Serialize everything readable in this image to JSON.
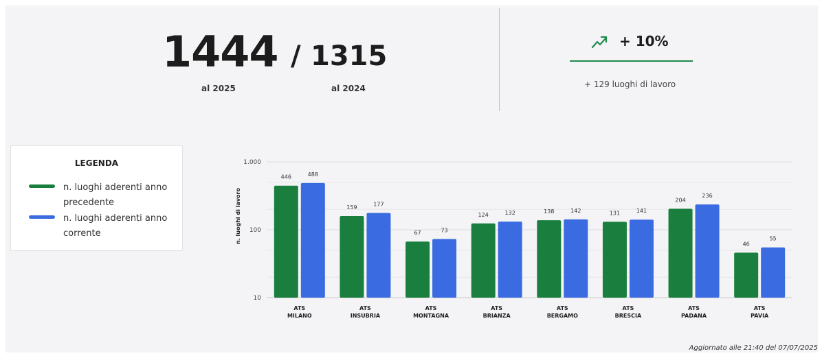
{
  "kpi": {
    "current_value": "1444",
    "separator": "/",
    "previous_value": "1315",
    "current_label": "al 2025",
    "previous_label": "al 2024"
  },
  "trend": {
    "icon": "trending-up-icon",
    "percent": "+ 10%",
    "subtext": "+ 129 luoghi di lavoro",
    "color": "#1e8a4c"
  },
  "legend": {
    "title": "LEGENDA",
    "items": [
      {
        "label": "n. luoghi aderenti anno precedente",
        "color": "#1a7f3e"
      },
      {
        "label": "n. luoghi aderenti anno corrente",
        "color": "#3a6be0"
      }
    ]
  },
  "chart_data": {
    "type": "bar",
    "categories": [
      [
        "ATS",
        "MILANO"
      ],
      [
        "ATS",
        "INSUBRIA"
      ],
      [
        "ATS",
        "MONTAGNA"
      ],
      [
        "ATS",
        "BRIANZA"
      ],
      [
        "ATS",
        "BERGAMO"
      ],
      [
        "ATS",
        "BRESCIA"
      ],
      [
        "ATS",
        "PADANA"
      ],
      [
        "ATS",
        "PAVIA"
      ]
    ],
    "series": [
      {
        "name": "n. luoghi aderenti anno precedente",
        "values": [
          446,
          159,
          67,
          124,
          138,
          131,
          204,
          46
        ],
        "color": "#1a7f3e"
      },
      {
        "name": "n. luoghi aderenti anno corrente",
        "values": [
          488,
          177,
          73,
          132,
          142,
          141,
          236,
          55
        ],
        "color": "#3a6be0"
      }
    ],
    "ylabel": "n. luoghi di lavoro",
    "yscale": "log",
    "ylim": [
      10,
      1000
    ],
    "yticks": [
      10,
      100,
      1000
    ],
    "ytick_labels": [
      "10",
      "100",
      "1.000"
    ],
    "grid": true
  },
  "footer": {
    "updated": "Aggiornato alle 21:40 del 07/07/2025"
  }
}
